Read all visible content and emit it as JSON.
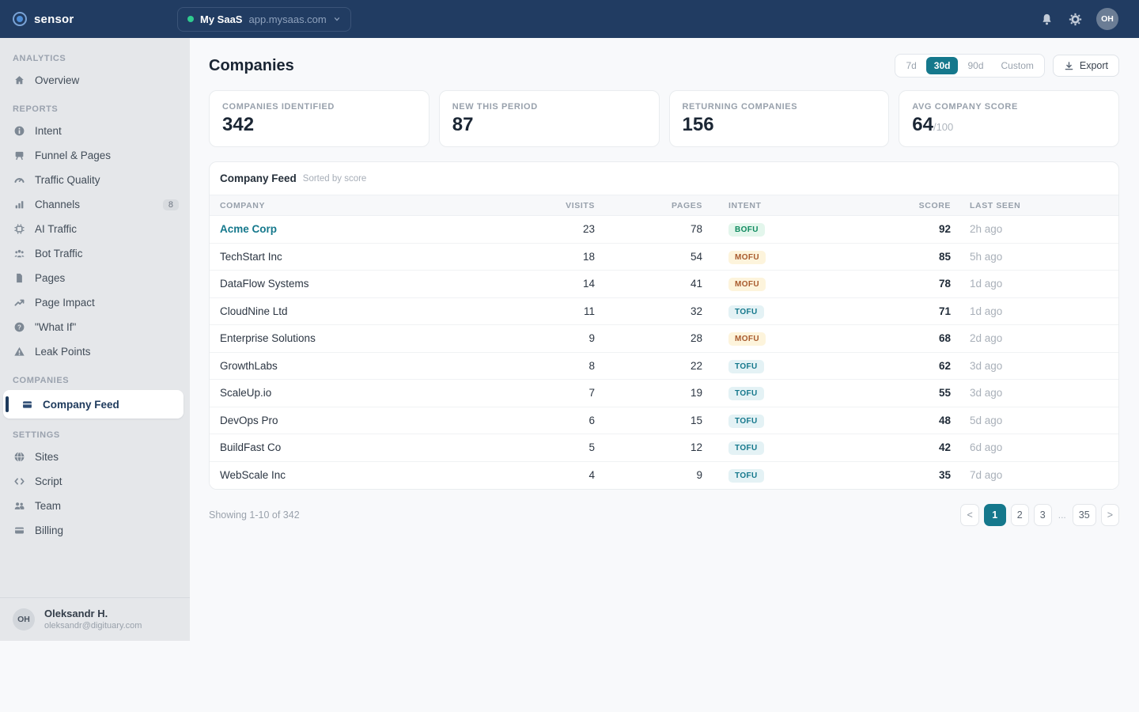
{
  "topbar": {
    "logo": "sensor",
    "site_switcher": {
      "name": "My SaaS",
      "domain": "app.mysaas.com"
    },
    "avatar_initials": "OH"
  },
  "sidebar": {
    "sections": [
      {
        "label": "ANALYTICS",
        "items": [
          {
            "label": "Overview",
            "icon": "home-icon"
          }
        ]
      },
      {
        "label": "REPORTS",
        "items": [
          {
            "label": "Intent",
            "icon": "info-icon"
          },
          {
            "label": "Funnel & Pages",
            "icon": "funnel-icon"
          },
          {
            "label": "Traffic Quality",
            "icon": "gauge-icon"
          },
          {
            "label": "Channels",
            "icon": "bar-chart-icon",
            "badge": "8"
          },
          {
            "label": "AI Traffic",
            "icon": "chip-icon"
          },
          {
            "label": "Bot Traffic",
            "icon": "bot-traffic-icon"
          },
          {
            "label": "Pages",
            "icon": "document-icon"
          },
          {
            "label": "Page Impact",
            "icon": "trend-up-icon"
          },
          {
            "label": "\"What If\"",
            "icon": "help-icon"
          },
          {
            "label": "Leak Points",
            "icon": "warning-icon"
          }
        ]
      },
      {
        "label": "COMPANIES",
        "items": [
          {
            "label": "Company Feed",
            "icon": "card-icon",
            "active": true
          }
        ]
      },
      {
        "label": "SETTINGS",
        "items": [
          {
            "label": "Sites",
            "icon": "globe-icon"
          },
          {
            "label": "Script",
            "icon": "code-icon"
          },
          {
            "label": "Team",
            "icon": "team-icon"
          },
          {
            "label": "Billing",
            "icon": "billing-icon"
          }
        ]
      }
    ],
    "user": {
      "initials": "OH",
      "name": "Oleksandr H.",
      "email": "oleksandr@digituary.com"
    }
  },
  "header": {
    "title": "Companies",
    "ranges": [
      "7d",
      "30d",
      "90d",
      "Custom"
    ],
    "active_range": "30d",
    "export_label": "Export"
  },
  "stats": [
    {
      "label": "COMPANIES IDENTIFIED",
      "value": "342"
    },
    {
      "label": "NEW THIS PERIOD",
      "value": "87"
    },
    {
      "label": "RETURNING COMPANIES",
      "value": "156"
    },
    {
      "label": "AVG COMPANY SCORE",
      "value": "64",
      "suffix": "/100"
    }
  ],
  "table": {
    "title": "Company Feed",
    "subtitle": "Sorted by score",
    "columns": [
      "COMPANY",
      "VISITS",
      "PAGES",
      "INTENT",
      "SCORE",
      "LAST SEEN"
    ],
    "rows": [
      {
        "company": "Acme Corp",
        "visits": "23",
        "pages": "78",
        "intent": "BOFU",
        "score": "92",
        "last_seen": "2h ago"
      },
      {
        "company": "TechStart Inc",
        "visits": "18",
        "pages": "54",
        "intent": "MOFU",
        "score": "85",
        "last_seen": "5h ago"
      },
      {
        "company": "DataFlow Systems",
        "visits": "14",
        "pages": "41",
        "intent": "MOFU",
        "score": "78",
        "last_seen": "1d ago"
      },
      {
        "company": "CloudNine Ltd",
        "visits": "11",
        "pages": "32",
        "intent": "TOFU",
        "score": "71",
        "last_seen": "1d ago"
      },
      {
        "company": "Enterprise Solutions",
        "visits": "9",
        "pages": "28",
        "intent": "MOFU",
        "score": "68",
        "last_seen": "2d ago"
      },
      {
        "company": "GrowthLabs",
        "visits": "8",
        "pages": "22",
        "intent": "TOFU",
        "score": "62",
        "last_seen": "3d ago"
      },
      {
        "company": "ScaleUp.io",
        "visits": "7",
        "pages": "19",
        "intent": "TOFU",
        "score": "55",
        "last_seen": "3d ago"
      },
      {
        "company": "DevOps Pro",
        "visits": "6",
        "pages": "15",
        "intent": "TOFU",
        "score": "48",
        "last_seen": "5d ago"
      },
      {
        "company": "BuildFast Co",
        "visits": "5",
        "pages": "12",
        "intent": "TOFU",
        "score": "42",
        "last_seen": "6d ago"
      },
      {
        "company": "WebScale Inc",
        "visits": "4",
        "pages": "9",
        "intent": "TOFU",
        "score": "35",
        "last_seen": "7d ago"
      }
    ]
  },
  "pagination": {
    "summary": "Showing 1-10 of 342",
    "items": [
      {
        "label": "<",
        "kind": "prev"
      },
      {
        "label": "1",
        "kind": "page",
        "active": true
      },
      {
        "label": "2",
        "kind": "page"
      },
      {
        "label": "3",
        "kind": "page"
      },
      {
        "label": "...",
        "kind": "ellipsis"
      },
      {
        "label": "35",
        "kind": "page"
      },
      {
        "label": ">",
        "kind": "next"
      }
    ]
  },
  "colors": {
    "topbar": "#213c62",
    "sidebar_bg": "#e5e7ea",
    "main_bg": "#f8f9fb",
    "accent_teal": "#15788c",
    "green_status_dot": "#2fcb8f",
    "badge_bofu_text": "#0f8a5f",
    "badge_bofu_bg": "#e3f6ec",
    "badge_mofu_text": "#a85a2d",
    "badge_mofu_bg": "#fdf4dc",
    "badge_tofu_text": "#15788c",
    "badge_tofu_bg": "#e4f2f5"
  }
}
